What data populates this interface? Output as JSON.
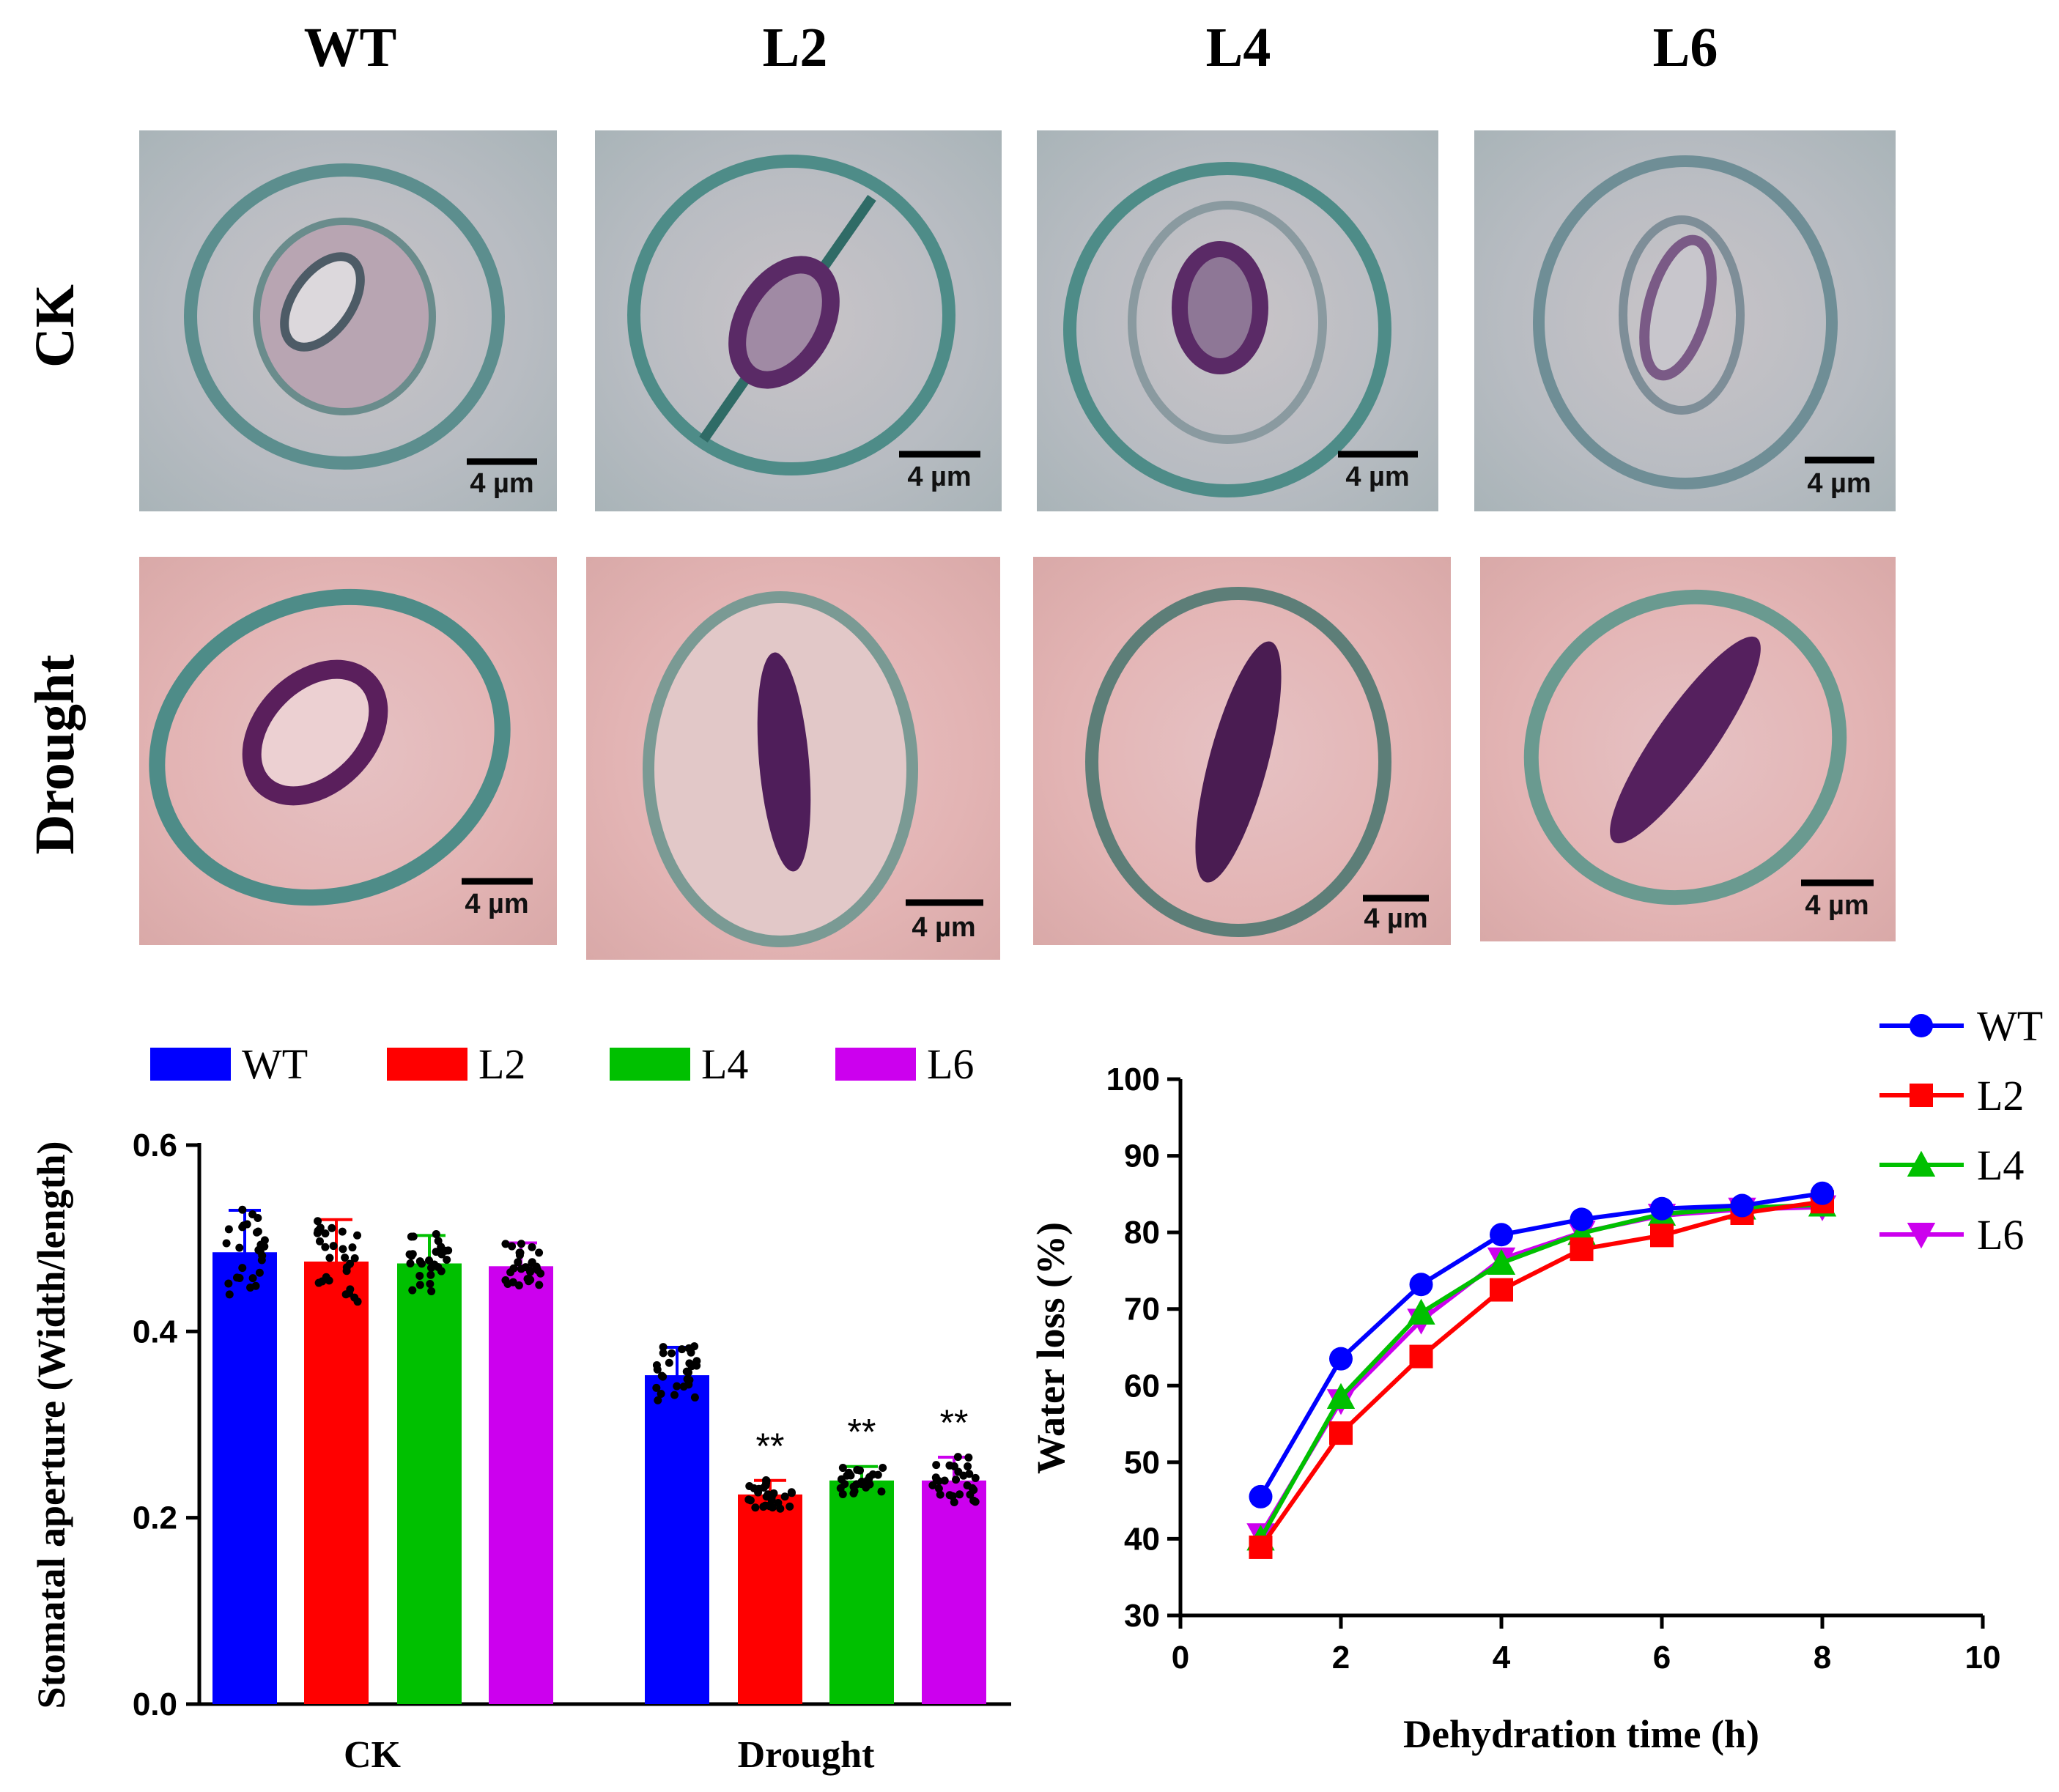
{
  "figure": {
    "columns": [
      "WT",
      "L2",
      "L4",
      "L6"
    ],
    "rows": [
      "CK",
      "Drought"
    ],
    "scale_bar_label": "4 µm",
    "colors": {
      "WT": "#0000ff",
      "L2": "#ff0000",
      "L4": "#00c000",
      "L6": "#cc00ee"
    }
  },
  "chart_data": [
    {
      "type": "bar",
      "ylabel": "Stomatal aperture (Width/length)",
      "ylim": [
        0,
        0.6
      ],
      "yticks": [
        "0.0",
        "0.2",
        "0.4",
        "0.6"
      ],
      "categories": [
        "CK",
        "Drought"
      ],
      "series": [
        {
          "name": "WT",
          "values": [
            0.485,
            0.353
          ],
          "errors": [
            0.045,
            0.03
          ]
        },
        {
          "name": "L2",
          "values": [
            0.475,
            0.225
          ],
          "errors": [
            0.045,
            0.015
          ]
        },
        {
          "name": "L4",
          "values": [
            0.473,
            0.24
          ],
          "errors": [
            0.03,
            0.015
          ]
        },
        {
          "name": "L6",
          "values": [
            0.47,
            0.24
          ],
          "errors": [
            0.025,
            0.025
          ]
        }
      ],
      "significance": [
        [
          "",
          "",
          "",
          ""
        ],
        [
          "",
          "**",
          "**",
          "**"
        ]
      ],
      "legend": [
        "WT",
        "L2",
        "L4",
        "L6"
      ]
    },
    {
      "type": "line",
      "xlabel": "Dehydration time (h)",
      "ylabel": "Water loss (%)",
      "xlim": [
        0,
        10
      ],
      "ylim": [
        30,
        100
      ],
      "xticks": [
        "0",
        "2",
        "4",
        "6",
        "8",
        "10"
      ],
      "yticks": [
        "30",
        "40",
        "50",
        "60",
        "70",
        "80",
        "90",
        "100"
      ],
      "x": [
        1,
        2,
        3,
        4,
        5,
        6,
        7,
        8
      ],
      "series": [
        {
          "name": "WT",
          "marker": "circle",
          "values": [
            45.5,
            63.5,
            73.2,
            79.7,
            81.7,
            83.1,
            83.5,
            85.1
          ]
        },
        {
          "name": "L2",
          "marker": "square",
          "values": [
            38.9,
            53.8,
            63.8,
            72.5,
            77.8,
            79.6,
            82.5,
            84.0
          ]
        },
        {
          "name": "L4",
          "marker": "triangle-up",
          "values": [
            40.0,
            58.5,
            69.5,
            76.0,
            79.9,
            82.4,
            83.2,
            83.6
          ]
        },
        {
          "name": "L6",
          "marker": "triangle-down",
          "values": [
            40.5,
            58.0,
            68.5,
            76.5,
            80.0,
            82.2,
            83.0,
            83.3
          ]
        }
      ],
      "legend": [
        "WT",
        "L2",
        "L4",
        "L6"
      ]
    }
  ]
}
